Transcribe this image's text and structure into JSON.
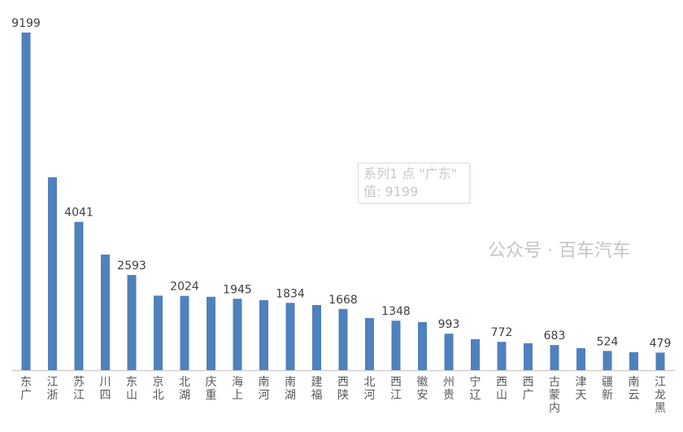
{
  "chart_data": {
    "type": "bar",
    "title": "",
    "xlabel": "",
    "ylabel": "",
    "ylim": [
      0,
      9199
    ],
    "grid": false,
    "bar_color": "#4f81bd",
    "categories": [
      "广东",
      "浙江",
      "江苏",
      "四川",
      "山东",
      "北京",
      "湖北",
      "重庆",
      "上海",
      "河南",
      "湖南",
      "福建",
      "陕西",
      "河北",
      "江西",
      "安徽",
      "贵州",
      "辽宁",
      "山西",
      "广西",
      "内蒙古",
      "天津",
      "新疆",
      "云南",
      "黑龙江"
    ],
    "series": [
      {
        "name": "系列1",
        "values": [
          9199,
          5255,
          4041,
          3150,
          2593,
          2030,
          2024,
          2000,
          1945,
          1907,
          1834,
          1774,
          1668,
          1420,
          1348,
          1310,
          993,
          845,
          772,
          735,
          683,
          600,
          524,
          490,
          479
        ]
      }
    ],
    "data_labels": [
      "9199",
      "",
      "4041",
      "",
      "2593",
      "",
      "2024",
      "",
      "1945",
      "",
      "1834",
      "",
      "1668",
      "",
      "1348",
      "",
      "993",
      "",
      "772",
      "",
      "683",
      "",
      "524",
      "",
      "479"
    ]
  },
  "tooltip": {
    "line1": "系列1 点 \"广东\"",
    "line2": "值: 9199"
  },
  "watermark": "公众号 · 百车汽车"
}
